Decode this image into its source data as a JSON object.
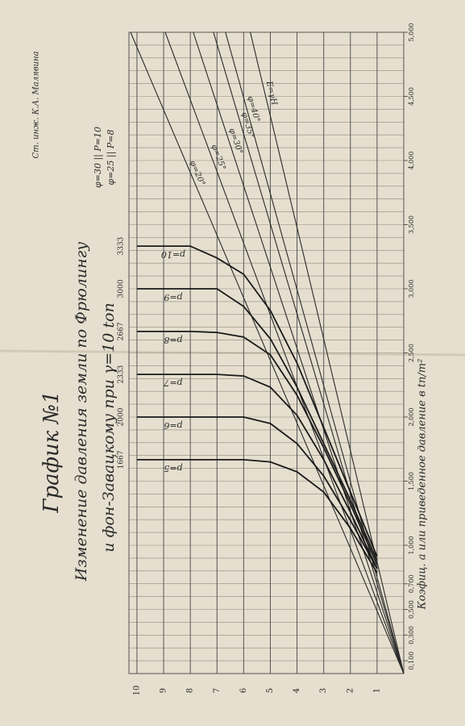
{
  "chart_data": {
    "type": "line",
    "title": "График №1",
    "subtitle": "Изменение давления земли по Фрюлингу",
    "subtitle2": "и фон-Завацкому при γ=10 ton",
    "x_label": "Коэфиц. a или приведенное давление в tn/m²",
    "note": [
      "φ=30 || P=10",
      "φ=25 || P=8"
    ],
    "signature": "Ст. инж. К.А. Малявина",
    "xlim": [
      0,
      5000
    ],
    "ylim": [
      0,
      10.3
    ],
    "xticks": [
      {
        "value": 100,
        "label": "0,100"
      },
      {
        "value": 300,
        "label": "0,300"
      },
      {
        "value": 500,
        "label": "0,500"
      },
      {
        "value": 700,
        "label": "0,700"
      },
      {
        "value": 1000,
        "label": "1,000"
      },
      {
        "value": 1500,
        "label": "1,500"
      },
      {
        "value": 2000,
        "label": "2,000"
      },
      {
        "value": 2500,
        "label": "2,500"
      },
      {
        "value": 3000,
        "label": "3,000"
      },
      {
        "value": 3500,
        "label": "3,500"
      },
      {
        "value": 4000,
        "label": "4,000"
      },
      {
        "value": 4500,
        "label": "4,500"
      },
      {
        "value": 5000,
        "label": "5,000"
      }
    ],
    "yticks": [
      1,
      2,
      3,
      4,
      5,
      6,
      7,
      8,
      9,
      10
    ],
    "grid": true,
    "series": [
      {
        "name": "φ=20°",
        "color": "#2a2a2a",
        "x": [
          0,
          5000
        ],
        "values": [
          0,
          10.24
        ]
      },
      {
        "name": "φ=25°",
        "color": "#2a2a2a",
        "x": [
          0,
          5000
        ],
        "values": [
          0,
          8.94
        ]
      },
      {
        "name": "φ=30°",
        "color": "#2a2a2a",
        "x": [
          0,
          5000
        ],
        "values": [
          0,
          7.89
        ]
      },
      {
        "name": "φ=35°",
        "color": "#2a2a2a",
        "x": [
          0,
          5000
        ],
        "values": [
          0,
          7.13
        ]
      },
      {
        "name": "φ=40°",
        "color": "#2a2a2a",
        "x": [
          0,
          5000
        ],
        "values": [
          0,
          6.68
        ]
      },
      {
        "name": "E=γH",
        "color": "#2a2a2a",
        "x": [
          0,
          5000
        ],
        "values": [
          0,
          5.75
        ]
      },
      {
        "name": "p=10",
        "color": "#1a1a1a",
        "x": [
          3333,
          3333,
          3333,
          3240,
          3113,
          2830,
          2420,
          1918,
          1415,
          912
        ],
        "values": [
          10,
          9,
          8,
          7,
          6,
          5,
          4,
          3,
          2,
          1
        ]
      },
      {
        "name": "p=9",
        "color": "#1a1a1a",
        "x": [
          3000,
          3000,
          3000,
          3000,
          2862,
          2610,
          2233,
          1793,
          1352,
          880
        ],
        "values": [
          10,
          9,
          8,
          7,
          6,
          5,
          4,
          3,
          2,
          1
        ]
      },
      {
        "name": "p=8",
        "color": "#1a1a1a",
        "x": [
          2667,
          2667,
          2667,
          2660,
          2623,
          2485,
          2170,
          1761,
          1321,
          849
        ],
        "values": [
          10,
          9,
          8,
          7,
          6,
          5,
          4,
          3,
          2,
          1
        ]
      },
      {
        "name": "p=7",
        "color": "#1a1a1a",
        "x": [
          2333,
          2333,
          2333,
          2333,
          2320,
          2233,
          2013,
          1667,
          1258,
          818
        ],
        "values": [
          10,
          9,
          8,
          7,
          6,
          5,
          4,
          3,
          2,
          1
        ]
      },
      {
        "name": "p=6",
        "color": "#1a1a1a",
        "x": [
          2000,
          2000,
          2000,
          2000,
          2000,
          1950,
          1793,
          1541,
          1195,
          818
        ],
        "values": [
          10,
          9,
          8,
          7,
          6,
          5,
          4,
          3,
          2,
          1
        ]
      },
      {
        "name": "p=5",
        "color": "#1a1a1a",
        "x": [
          1667,
          1667,
          1667,
          1667,
          1667,
          1650,
          1573,
          1415,
          1132,
          786
        ],
        "values": [
          10,
          9,
          8,
          7,
          6,
          5,
          4,
          3,
          2,
          1
        ]
      }
    ]
  }
}
